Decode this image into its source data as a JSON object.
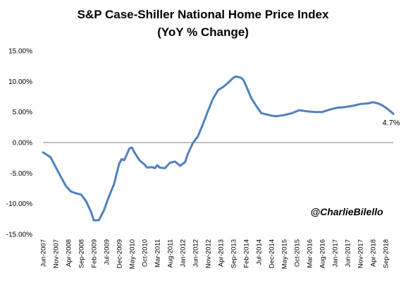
{
  "chart_data": {
    "type": "line",
    "title": "S&P Case-Shiller National Home Price Index",
    "subtitle": "(YoY % Change)",
    "ylim": [
      -15,
      15
    ],
    "y_ticks": [
      "15.00%",
      "10.00%",
      "5.00%",
      "0.00%",
      "-5.00%",
      "-10.00%",
      "-15.00%"
    ],
    "x_ticks": [
      "Jun-2007",
      "Nov-2007",
      "Apr-2008",
      "Sep-2008",
      "Feb-2009",
      "Jul-2009",
      "Dec-2009",
      "May-2010",
      "Oct-2010",
      "Mar-2011",
      "Aug-2011",
      "Jan-2012",
      "Jun-2012",
      "Nov-2012",
      "Apr-2013",
      "Sep-2013",
      "Feb-2014",
      "Jul-2014",
      "Dec-2014",
      "May-2015",
      "Oct-2015",
      "Mar-2016",
      "Aug-2016",
      "Jan-2017",
      "Jun-2017",
      "Nov-2017",
      "Apr-2018",
      "Sep-2018"
    ],
    "grid": false,
    "end_label": "4.7%",
    "watermark": "@CharlieBilello",
    "series": [
      {
        "color": "#4F81BD",
        "values": [
          {
            "x": "2007-06",
            "y": -1.6
          },
          {
            "x": "2007-09",
            "y": -2.4
          },
          {
            "x": "2007-12",
            "y": -4.8
          },
          {
            "x": "2008-03",
            "y": -7.1
          },
          {
            "x": "2008-05",
            "y": -8.0
          },
          {
            "x": "2008-07",
            "y": -8.3
          },
          {
            "x": "2008-09",
            "y": -8.5
          },
          {
            "x": "2008-11",
            "y": -9.6
          },
          {
            "x": "2009-01",
            "y": -11.4
          },
          {
            "x": "2009-02",
            "y": -12.7
          },
          {
            "x": "2009-04",
            "y": -12.7
          },
          {
            "x": "2009-06",
            "y": -11.1
          },
          {
            "x": "2009-08",
            "y": -8.8
          },
          {
            "x": "2009-10",
            "y": -6.8
          },
          {
            "x": "2009-12",
            "y": -3.5
          },
          {
            "x": "2010-01",
            "y": -2.7
          },
          {
            "x": "2010-02",
            "y": -2.9
          },
          {
            "x": "2010-03",
            "y": -2.0
          },
          {
            "x": "2010-04",
            "y": -1.0
          },
          {
            "x": "2010-05",
            "y": -0.8
          },
          {
            "x": "2010-06",
            "y": -1.6
          },
          {
            "x": "2010-08",
            "y": -2.9
          },
          {
            "x": "2010-10",
            "y": -3.6
          },
          {
            "x": "2010-11",
            "y": -4.1
          },
          {
            "x": "2011-01",
            "y": -4.0
          },
          {
            "x": "2011-02",
            "y": -4.2
          },
          {
            "x": "2011-03",
            "y": -3.7
          },
          {
            "x": "2011-04",
            "y": -4.1
          },
          {
            "x": "2011-06",
            "y": -4.2
          },
          {
            "x": "2011-08",
            "y": -3.3
          },
          {
            "x": "2011-10",
            "y": -3.1
          },
          {
            "x": "2011-12",
            "y": -3.8
          },
          {
            "x": "2012-02",
            "y": -3.2
          },
          {
            "x": "2012-03",
            "y": -1.9
          },
          {
            "x": "2012-05",
            "y": -0.1
          },
          {
            "x": "2012-07",
            "y": 1.0
          },
          {
            "x": "2012-09",
            "y": 3.0
          },
          {
            "x": "2012-11",
            "y": 5.2
          },
          {
            "x": "2013-01",
            "y": 7.2
          },
          {
            "x": "2013-03",
            "y": 8.6
          },
          {
            "x": "2013-05",
            "y": 9.1
          },
          {
            "x": "2013-07",
            "y": 9.8
          },
          {
            "x": "2013-09",
            "y": 10.6
          },
          {
            "x": "2013-10",
            "y": 10.8
          },
          {
            "x": "2013-12",
            "y": 10.6
          },
          {
            "x": "2014-01",
            "y": 10.2
          },
          {
            "x": "2014-02",
            "y": 9.3
          },
          {
            "x": "2014-04",
            "y": 7.3
          },
          {
            "x": "2014-06",
            "y": 6.0
          },
          {
            "x": "2014-08",
            "y": 4.8
          },
          {
            "x": "2014-10",
            "y": 4.6
          },
          {
            "x": "2014-12",
            "y": 4.4
          },
          {
            "x": "2015-02",
            "y": 4.3
          },
          {
            "x": "2015-05",
            "y": 4.5
          },
          {
            "x": "2015-08",
            "y": 4.8
          },
          {
            "x": "2015-11",
            "y": 5.3
          },
          {
            "x": "2016-02",
            "y": 5.1
          },
          {
            "x": "2016-05",
            "y": 5.0
          },
          {
            "x": "2016-08",
            "y": 5.0
          },
          {
            "x": "2016-11",
            "y": 5.4
          },
          {
            "x": "2017-02",
            "y": 5.7
          },
          {
            "x": "2017-05",
            "y": 5.8
          },
          {
            "x": "2017-08",
            "y": 6.0
          },
          {
            "x": "2017-11",
            "y": 6.3
          },
          {
            "x": "2018-02",
            "y": 6.4
          },
          {
            "x": "2018-04",
            "y": 6.6
          },
          {
            "x": "2018-06",
            "y": 6.4
          },
          {
            "x": "2018-08",
            "y": 6.0
          },
          {
            "x": "2018-10",
            "y": 5.4
          },
          {
            "x": "2018-12",
            "y": 4.7
          }
        ]
      }
    ]
  }
}
